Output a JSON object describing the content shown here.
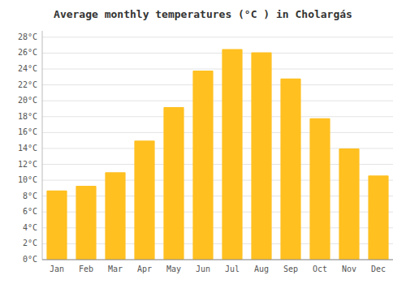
{
  "chart_data": {
    "type": "bar",
    "title": "Average monthly temperatures (°C ) in Cholargás",
    "categories": [
      "Jan",
      "Feb",
      "Mar",
      "Apr",
      "May",
      "Jun",
      "Jul",
      "Aug",
      "Sep",
      "Oct",
      "Nov",
      "Dec"
    ],
    "values": [
      8.7,
      9.3,
      11.0,
      15.0,
      19.2,
      23.8,
      26.5,
      26.1,
      22.8,
      17.8,
      14.0,
      10.6
    ],
    "color": "#FFC020",
    "ylim": [
      0,
      28.8
    ],
    "yticks": [
      {
        "value": 0,
        "label": "0°C"
      },
      {
        "value": 2,
        "label": "2°C"
      },
      {
        "value": 4,
        "label": "4°C"
      },
      {
        "value": 6,
        "label": "6°C"
      },
      {
        "value": 8,
        "label": "8°C"
      },
      {
        "value": 10,
        "label": "10°C"
      },
      {
        "value": 12,
        "label": "12°C"
      },
      {
        "value": 14,
        "label": "14°C"
      },
      {
        "value": 16,
        "label": "16°C"
      },
      {
        "value": 18,
        "label": "18°C"
      },
      {
        "value": 20,
        "label": "20°C"
      },
      {
        "value": 22,
        "label": "22°C"
      },
      {
        "value": 24,
        "label": "24°C"
      },
      {
        "value": 26,
        "label": "26°C"
      },
      {
        "value": 28,
        "label": "28°C"
      }
    ],
    "grid": true
  }
}
